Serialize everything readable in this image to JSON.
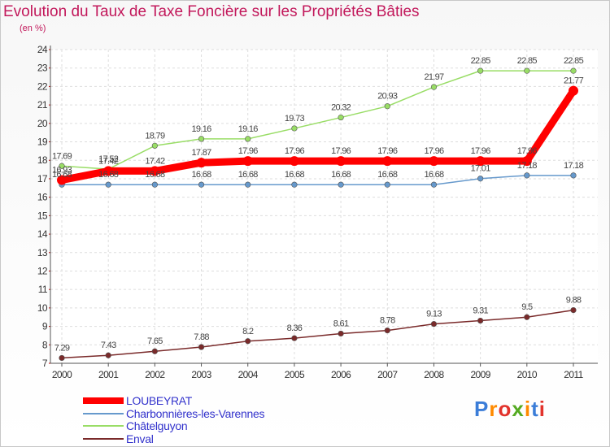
{
  "title": "Evolution du Taux de Taxe Foncière sur les Propriétés Bâties",
  "subtitle": "(en %)",
  "logo_text": "Proxiti",
  "chart_data": {
    "type": "line",
    "x": [
      "2000",
      "2001",
      "2002",
      "2003",
      "2004",
      "2005",
      "2006",
      "2007",
      "2008",
      "2009",
      "2010",
      "2011"
    ],
    "ylim": [
      7,
      24
    ],
    "yticks": [
      7,
      8,
      9,
      10,
      11,
      12,
      13,
      14,
      15,
      16,
      17,
      18,
      19,
      20,
      21,
      22,
      23,
      24
    ],
    "grid": true,
    "legend_position": "bottom-left",
    "series": [
      {
        "name": "LOUBEYRAT",
        "color": "#ff0000",
        "values": [
          16.93,
          17.42,
          17.42,
          17.87,
          17.96,
          17.96,
          17.96,
          17.96,
          17.96,
          17.96,
          17.96,
          21.77
        ],
        "labels": [
          "16.93",
          "17.42",
          "17.42",
          "17.87",
          "17.96",
          "17.96",
          "17.96",
          "17.96",
          "17.96",
          "17.96",
          "17.96",
          "21.77"
        ]
      },
      {
        "name": "Charbonnières-les-Varennes",
        "color": "#6699cc",
        "values": [
          16.68,
          16.68,
          16.68,
          16.68,
          16.68,
          16.68,
          16.68,
          16.68,
          16.68,
          17.01,
          17.18,
          17.18
        ],
        "labels": [
          "16.68",
          "16.68",
          "16.68",
          "16.68",
          "16.68",
          "16.68",
          "16.68",
          "16.68",
          "16.68",
          "17.01",
          "17.18",
          "17.18"
        ]
      },
      {
        "name": "Châtelguyon",
        "color": "#99dd66",
        "values": [
          17.69,
          17.52,
          18.79,
          19.16,
          19.16,
          19.73,
          20.32,
          20.93,
          21.97,
          22.85,
          22.85,
          22.85
        ],
        "labels": [
          "17.69",
          "17.52",
          "18.79",
          "19.16",
          "19.16",
          "19.73",
          "20.32",
          "20.93",
          "21.97",
          "22.85",
          "22.85",
          "22.85"
        ]
      },
      {
        "name": "Enval",
        "color": "#7a2a2a",
        "values": [
          7.29,
          7.43,
          7.65,
          7.88,
          8.2,
          8.36,
          8.61,
          8.78,
          9.13,
          9.31,
          9.5,
          9.88
        ],
        "labels": [
          "7.29",
          "7.43",
          "7.65",
          "7.88",
          "8.2",
          "8.36",
          "8.61",
          "8.78",
          "9.13",
          "9.31",
          "9.5",
          "9.88"
        ]
      }
    ]
  }
}
